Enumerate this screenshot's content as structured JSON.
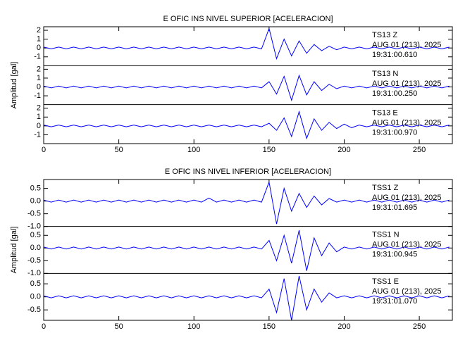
{
  "chart_data": [
    {
      "type": "line",
      "title": "E OFIC INS NIVEL SUPERIOR [ACELERACION]",
      "ylabel": "Amplitud [gal]",
      "color": "#0000ff",
      "xlim": [
        0,
        272
      ],
      "xticks": [
        0,
        50,
        100,
        150,
        200,
        250
      ],
      "x": [
        0,
        5,
        10,
        15,
        20,
        25,
        30,
        35,
        40,
        45,
        50,
        55,
        60,
        65,
        70,
        75,
        80,
        85,
        90,
        95,
        100,
        105,
        110,
        115,
        120,
        125,
        130,
        135,
        140,
        145,
        150,
        155,
        160,
        165,
        170,
        175,
        180,
        185,
        190,
        195,
        200,
        205,
        210,
        215,
        220,
        225,
        230,
        235,
        240,
        245,
        250,
        255,
        260,
        265,
        270
      ],
      "series": [
        {
          "name": "TS13  Z",
          "date": "AUG 01 (213), 2025",
          "time": "19:31:00.610",
          "ylim": [
            -2,
            2.4
          ],
          "yticks": [
            -1,
            0,
            1,
            2
          ],
          "values": [
            0.1,
            -0.1,
            0.1,
            -0.1,
            0.1,
            -0.1,
            0.1,
            -0.1,
            0.1,
            -0.1,
            0.1,
            -0.1,
            0.1,
            -0.1,
            0.1,
            -0.1,
            0.1,
            -0.1,
            0.1,
            -0.1,
            0.1,
            -0.1,
            0.1,
            -0.1,
            0.1,
            -0.1,
            0.1,
            -0.1,
            0.1,
            -0.1,
            2.2,
            -1.2,
            1.0,
            -0.9,
            0.8,
            -0.6,
            0.4,
            -0.3,
            0.2,
            -0.2,
            0.1,
            -0.1,
            0.1,
            -0.1,
            0.1,
            -0.1,
            0.1,
            -0.1,
            0.1,
            -0.1,
            0.1,
            -0.1,
            0.1,
            -0.1,
            0.1
          ]
        },
        {
          "name": "TS13  N",
          "date": "AUG 01 (213), 2025",
          "time": "19:31:00.250",
          "ylim": [
            -2,
            2.4
          ],
          "yticks": [
            -1,
            0,
            1,
            2
          ],
          "values": [
            0.1,
            -0.1,
            0.1,
            -0.1,
            0.1,
            -0.1,
            0.1,
            -0.1,
            0.1,
            -0.1,
            0.1,
            -0.1,
            0.1,
            -0.1,
            0.1,
            -0.1,
            0.1,
            -0.1,
            0.1,
            -0.1,
            0.1,
            -0.1,
            0.1,
            -0.1,
            0.1,
            -0.1,
            0.1,
            -0.1,
            0.1,
            -0.1,
            0.6,
            -0.8,
            1.2,
            -1.5,
            1.3,
            -0.9,
            0.6,
            -0.4,
            0.3,
            -0.2,
            0.1,
            -0.1,
            0.1,
            -0.1,
            0.1,
            -0.1,
            0.1,
            -0.1,
            0.1,
            -0.1,
            0.1,
            -0.1,
            0.1,
            -0.1,
            0.1
          ]
        },
        {
          "name": "TS13  E",
          "date": "AUG 01 (213), 2025",
          "time": "19:31:00.970",
          "ylim": [
            -2,
            2.4
          ],
          "yticks": [
            -1,
            0,
            1,
            2
          ],
          "values": [
            0.1,
            -0.1,
            0.1,
            -0.1,
            0.1,
            -0.1,
            0.1,
            -0.1,
            0.1,
            -0.1,
            0.1,
            -0.1,
            0.1,
            -0.1,
            0.1,
            -0.1,
            0.1,
            -0.1,
            0.1,
            -0.1,
            0.1,
            -0.1,
            0.1,
            -0.1,
            0.1,
            -0.1,
            0.1,
            -0.1,
            0.1,
            -0.1,
            0.3,
            -0.5,
            0.9,
            -1.2,
            1.6,
            -1.4,
            0.8,
            -0.5,
            0.4,
            -0.3,
            0.2,
            -0.2,
            0.1,
            -0.1,
            0.1,
            -0.1,
            0.1,
            -0.1,
            0.1,
            -0.1,
            0.1,
            -0.1,
            0.1,
            -0.1,
            0.1
          ]
        }
      ]
    },
    {
      "type": "line",
      "title": "E OFIC INS NIVEL INFERIOR [ACELERACION]",
      "ylabel": "Amplitud [gal]",
      "color": "#0000ff",
      "xlim": [
        0,
        272
      ],
      "xticks": [
        0,
        50,
        100,
        150,
        200,
        250
      ],
      "x": [
        0,
        5,
        10,
        15,
        20,
        25,
        30,
        35,
        40,
        45,
        50,
        55,
        60,
        65,
        70,
        75,
        80,
        85,
        90,
        95,
        100,
        105,
        110,
        115,
        120,
        125,
        130,
        135,
        140,
        145,
        150,
        155,
        160,
        165,
        170,
        175,
        180,
        185,
        190,
        195,
        200,
        205,
        210,
        215,
        220,
        225,
        230,
        235,
        240,
        245,
        250,
        255,
        260,
        265,
        270
      ],
      "series": [
        {
          "name": "TSS1  Z",
          "date": "AUG 01 (213), 2025",
          "time": "19:31:01.695",
          "ylim": [
            -1.0,
            0.85
          ],
          "yticks": [
            {
              "value": -1.0,
              "label": "-1.0"
            },
            -0.5,
            {
              "value": 0,
              "label": "0.0"
            },
            0.5
          ],
          "values": [
            0.04,
            -0.04,
            0.04,
            -0.04,
            0.04,
            -0.04,
            0.04,
            -0.04,
            0.04,
            -0.04,
            0.04,
            -0.04,
            0.04,
            -0.04,
            0.04,
            -0.04,
            0.04,
            -0.04,
            0.04,
            -0.04,
            0.04,
            -0.04,
            0.12,
            -0.04,
            0.04,
            -0.04,
            0.04,
            -0.04,
            0.04,
            -0.04,
            0.75,
            -0.9,
            0.5,
            -0.4,
            0.3,
            -0.25,
            0.2,
            -0.15,
            0.1,
            -0.04,
            0.04,
            -0.04,
            0.04,
            -0.04,
            0.04,
            -0.04,
            0.04,
            -0.04,
            0.04,
            -0.04,
            0.04,
            -0.04,
            0.04,
            -0.04,
            0.04
          ]
        },
        {
          "name": "TSS1  N",
          "date": "AUG 01 (213), 2025",
          "time": "19:31:00.945",
          "ylim": [
            -1.0,
            0.85
          ],
          "yticks": [
            {
              "value": -1.0,
              "label": "-1.0"
            },
            -0.5,
            {
              "value": 0,
              "label": "0.0"
            },
            0.5
          ],
          "values": [
            0.04,
            -0.04,
            0.04,
            -0.04,
            0.04,
            -0.04,
            0.04,
            -0.04,
            0.04,
            -0.04,
            0.04,
            -0.04,
            0.04,
            -0.04,
            0.04,
            -0.04,
            0.04,
            -0.04,
            0.04,
            -0.04,
            0.04,
            -0.04,
            0.04,
            -0.04,
            0.04,
            -0.04,
            0.04,
            -0.04,
            0.04,
            -0.04,
            0.3,
            -0.5,
            0.5,
            -0.6,
            0.7,
            -0.9,
            0.4,
            -0.3,
            0.2,
            -0.15,
            0.04,
            -0.04,
            0.04,
            -0.04,
            0.04,
            -0.04,
            0.04,
            -0.04,
            0.04,
            -0.04,
            0.04,
            -0.04,
            0.04,
            -0.04,
            0.04
          ]
        },
        {
          "name": "TSS1  E",
          "date": "AUG 01 (213), 2025",
          "time": "19:31:01.070",
          "ylim": [
            -0.9,
            0.9
          ],
          "yticks": [
            -0.5,
            {
              "value": 0,
              "label": "0.0"
            },
            0.5
          ],
          "values": [
            0.04,
            -0.04,
            0.04,
            -0.04,
            0.04,
            -0.04,
            0.04,
            -0.04,
            0.04,
            -0.04,
            0.04,
            -0.04,
            0.04,
            -0.04,
            0.04,
            -0.04,
            0.04,
            -0.04,
            0.04,
            -0.04,
            0.04,
            -0.04,
            0.04,
            -0.04,
            0.04,
            -0.04,
            0.04,
            -0.04,
            0.04,
            -0.04,
            0.3,
            -0.6,
            0.7,
            -0.9,
            0.8,
            -0.5,
            0.3,
            -0.2,
            0.15,
            -0.04,
            0.04,
            -0.04,
            0.04,
            -0.04,
            0.04,
            -0.04,
            0.04,
            -0.04,
            0.04,
            -0.04,
            0.04,
            -0.04,
            0.04,
            -0.04,
            0.04
          ]
        }
      ]
    }
  ]
}
